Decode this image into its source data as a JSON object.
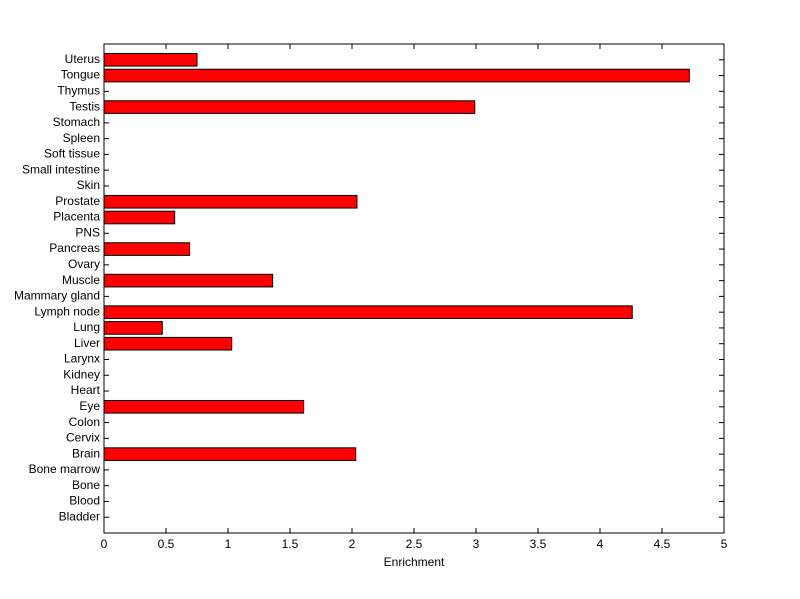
{
  "chart_data": {
    "type": "barh",
    "xlabel": "Enrichment",
    "categories": [
      "Uterus",
      "Tongue",
      "Thymus",
      "Testis",
      "Stomach",
      "Spleen",
      "Soft tissue",
      "Small intestine",
      "Skin",
      "Prostate",
      "Placenta",
      "PNS",
      "Pancreas",
      "Ovary",
      "Muscle",
      "Mammary gland",
      "Lymph node",
      "Lung",
      "Liver",
      "Larynx",
      "Kidney",
      "Heart",
      "Eye",
      "Colon",
      "Cervix",
      "Brain",
      "Bone marrow",
      "Bone",
      "Blood",
      "Bladder"
    ],
    "values": [
      0.75,
      4.72,
      0,
      2.99,
      0,
      0,
      0,
      0,
      0,
      2.04,
      0.57,
      0,
      0.69,
      0,
      1.36,
      0,
      4.26,
      0.47,
      1.03,
      0,
      0,
      0,
      1.61,
      0,
      0,
      2.03,
      0,
      0,
      0,
      0
    ],
    "color": "#ff0000",
    "xlim": [
      0,
      5
    ],
    "xticks": [
      0,
      0.5,
      1,
      1.5,
      2,
      2.5,
      3,
      3.5,
      4,
      4.5,
      5
    ]
  }
}
